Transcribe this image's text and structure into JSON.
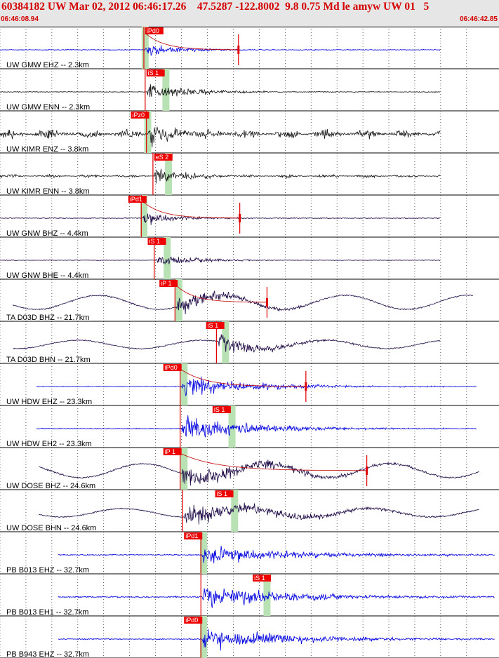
{
  "header": {
    "title": "60384182 UW Mar 02, 2012 06:46:17.26    47.5287 -122.8002  9.8 0.75 Md le amyw UW 01   5",
    "time_start": "06:46:08.94",
    "time_end": "06:46:42.85"
  },
  "colors": {
    "header_text": "#d40000",
    "header_bg": "#e6e6e6",
    "pick_box": "#ee0000",
    "phase_band": "#b8e2b4",
    "trace_blue": "#0000e0",
    "trace_black": "#1a1a1a",
    "trace_purple": "#1e0a46",
    "gridline": "#000000",
    "coda_curve": "#c00000"
  },
  "chart_data": {
    "type": "seismogram",
    "time_range": [
      "06:46:08.94",
      "06:46:42.85"
    ],
    "channels": [
      {
        "label": "UW GMW EHZ -- 2.3km",
        "color": "blue",
        "pick": {
          "label": "iPd0",
          "t": 11.2
        },
        "band_t": 11.2,
        "onset": 11.2,
        "amp": 0.45,
        "noise": 0.03,
        "start": 0.0,
        "end": 34.0,
        "coda_end": 18.5,
        "sta": "GMW",
        "kind": "impulsive",
        "red_marker_t": 18.4
      },
      {
        "label": "UW GMW ENN -- 2.3km",
        "color": "black",
        "pick": {
          "label": "iS 1",
          "t": 11.3
        },
        "band_t": 12.8,
        "onset": 11.3,
        "amp": 0.65,
        "noise": 0.03,
        "start": 0.0,
        "end": 34.0,
        "coda_end": 20.0,
        "sta": "GMW",
        "kind": "impulsive"
      },
      {
        "label": "UW KIMR ENZ -- 3.8km",
        "color": "black",
        "pick": {
          "label": "iPz0",
          "t": 10.1
        },
        "band_t": 11.4,
        "onset": 11.4,
        "amp": 0.9,
        "noise": 0.35,
        "start": 0.0,
        "end": 34.0,
        "coda_end": 17.0,
        "sta": "KIMR",
        "kind": "noisy"
      },
      {
        "label": "UW KIMR ENN -- 3.8km",
        "color": "black",
        "pick": {
          "label": "eS 2",
          "t": 11.9
        },
        "band_t": 13.0,
        "onset": 11.9,
        "amp": 0.85,
        "noise": 0.12,
        "start": 0.0,
        "end": 34.0,
        "coda_end": 17.0,
        "sta": "KIMR",
        "kind": "noisy"
      },
      {
        "label": "UW GNW BHZ -- 4.4km",
        "color": "purple",
        "pick": {
          "label": "iPd1",
          "t": 9.9
        },
        "band_t": 11.1,
        "onset": 11.0,
        "amp": 0.55,
        "noise": 0.03,
        "start": 0.0,
        "end": 34.0,
        "coda_end": 17.5,
        "sta": "GNW",
        "kind": "impulsive",
        "red_marker_t": 18.5
      },
      {
        "label": "UW GNW BHE -- 4.4km",
        "color": "purple",
        "pick": {
          "label": "iS 1",
          "t": 11.4
        },
        "band_t": 12.9,
        "onset": 12.0,
        "amp": 0.55,
        "noise": 0.02,
        "start": 0.0,
        "end": 34.0,
        "coda_end": 19.0,
        "sta": "GNW",
        "kind": "impulsive"
      },
      {
        "label": "TA D03D BHZ -- 21.7km",
        "color": "purple",
        "pick": {
          "label": "iP 1",
          "t": 12.3
        },
        "band_t": 13.8,
        "onset": 13.6,
        "amp": 0.75,
        "noise": 0.05,
        "start": 1.0,
        "end": 36.5,
        "coda_end": 24.0,
        "sta": "D03D",
        "kind": "longperiod",
        "red_marker_t": 20.6
      },
      {
        "label": "TA D03D BHN -- 21.7km",
        "color": "purple",
        "pick": {
          "label": "iS 1",
          "t": 15.9
        },
        "band_t": 17.4,
        "onset": 16.8,
        "amp": 0.7,
        "noise": 0.04,
        "start": 1.0,
        "end": 34.0,
        "coda_end": 26.0,
        "sta": "D03D",
        "kind": "longperiod"
      },
      {
        "label": "UW HDW EHZ -- 23.3km",
        "color": "blue",
        "pick": {
          "label": "iPd0",
          "t": 12.6
        },
        "band_t": 14.2,
        "onset": 14.0,
        "amp": 0.75,
        "noise": 0.03,
        "start": 2.8,
        "end": 36.8,
        "coda_end": 28.0,
        "sta": "HDW",
        "kind": "impulsive",
        "red_marker_t": 23.6
      },
      {
        "label": "UW HDW EH2 -- 23.3km",
        "color": "blue",
        "pick": {
          "label": "iS 1",
          "t": 16.4
        },
        "band_t": 17.9,
        "onset": 14.0,
        "amp": 0.9,
        "noise": 0.03,
        "start": 2.8,
        "end": 36.8,
        "coda_end": 28.0,
        "sta": "HDW",
        "kind": "impulsive"
      },
      {
        "label": "UW DOSE BHZ -- 24.6km",
        "color": "purple",
        "pick": {
          "label": "iP 1",
          "t": 12.6
        },
        "band_t": 14.2,
        "onset": 14.0,
        "amp": 0.7,
        "noise": 0.05,
        "start": 3.0,
        "end": 37.0,
        "coda_end": 33.0,
        "sta": "DOSE",
        "kind": "longperiod",
        "red_marker_t": 28.3
      },
      {
        "label": "UW DOSE BHN -- 24.6km",
        "color": "purple",
        "pick": {
          "label": "iS 1",
          "t": 16.6
        },
        "band_t": 18.1,
        "onset": 14.2,
        "amp": 0.75,
        "noise": 0.04,
        "start": 3.0,
        "end": 37.0,
        "coda_end": 33.0,
        "sta": "DOSE",
        "kind": "longperiod"
      },
      {
        "label": "PB B013 EHZ -- 32.7km",
        "color": "blue",
        "pick": {
          "label": "iPd1",
          "t": 14.2
        },
        "band_t": 15.7,
        "onset": 15.6,
        "amp": 0.7,
        "noise": 0.04,
        "start": 4.5,
        "end": 38.2,
        "coda_end": 34.0,
        "sta": "B013",
        "kind": "impulsive"
      },
      {
        "label": "PB B013 EH1 -- 32.7km",
        "color": "blue",
        "pick": {
          "label": "iS 1",
          "t": 19.5
        },
        "band_t": 20.6,
        "onset": 15.6,
        "amp": 0.85,
        "noise": 0.05,
        "start": 4.5,
        "end": 38.2,
        "coda_end": 34.0,
        "sta": "B013",
        "kind": "impulsive"
      },
      {
        "label": "PB B943 EHZ -- 32.7km",
        "color": "blue",
        "pick": {
          "label": "iPd0",
          "t": 14.2
        },
        "band_t": 15.7,
        "onset": 15.6,
        "amp": 0.75,
        "noise": 0.04,
        "start": 4.5,
        "end": 38.2,
        "coda_end": 34.0,
        "sta": "B943",
        "kind": "impulsive"
      }
    ]
  }
}
